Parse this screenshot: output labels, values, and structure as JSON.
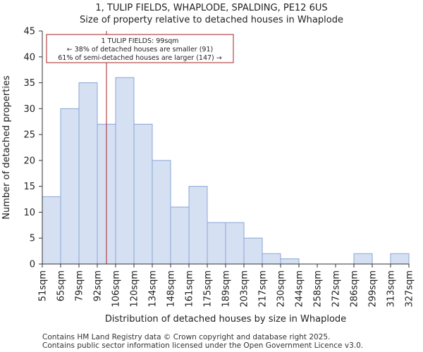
{
  "header": {
    "title_line1": "1, TULIP FIELDS, WHAPLODE, SPALDING, PE12 6US",
    "title_line2": "Size of property relative to detached houses in Whaplode"
  },
  "footer": {
    "line1": "Contains HM Land Registry data © Crown copyright and database right 2025.",
    "line2": "Contains public sector information licensed under the Open Government Licence v3.0."
  },
  "chart_data": {
    "type": "bar",
    "title": "Size of property relative to detached houses in Whaplode",
    "xlabel": "Distribution of detached houses by size in Whaplode",
    "ylabel": "Number of detached properties",
    "ylim": [
      0,
      45
    ],
    "yticks": [
      0,
      5,
      10,
      15,
      20,
      25,
      30,
      35,
      40,
      45
    ],
    "bin_edges": [
      "51sqm",
      "65sqm",
      "79sqm",
      "92sqm",
      "106sqm",
      "120sqm",
      "134sqm",
      "148sqm",
      "161sqm",
      "175sqm",
      "189sqm",
      "203sqm",
      "217sqm",
      "230sqm",
      "244sqm",
      "258sqm",
      "272sqm",
      "286sqm",
      "299sqm",
      "313sqm",
      "327sqm"
    ],
    "values": [
      13,
      30,
      35,
      27,
      36,
      27,
      20,
      11,
      15,
      8,
      8,
      5,
      2,
      1,
      0,
      0,
      0,
      2,
      0,
      2
    ],
    "bar_color": "#d6e0f3",
    "bar_edge_color": "#8aa6d6",
    "marker": {
      "value_sqm": 99,
      "color": "#aa2222",
      "line1": "1 TULIP FIELDS: 99sqm",
      "line2": "← 38% of detached houses are smaller (91)",
      "line3": "61% of semi-detached houses are larger (147) →"
    }
  }
}
